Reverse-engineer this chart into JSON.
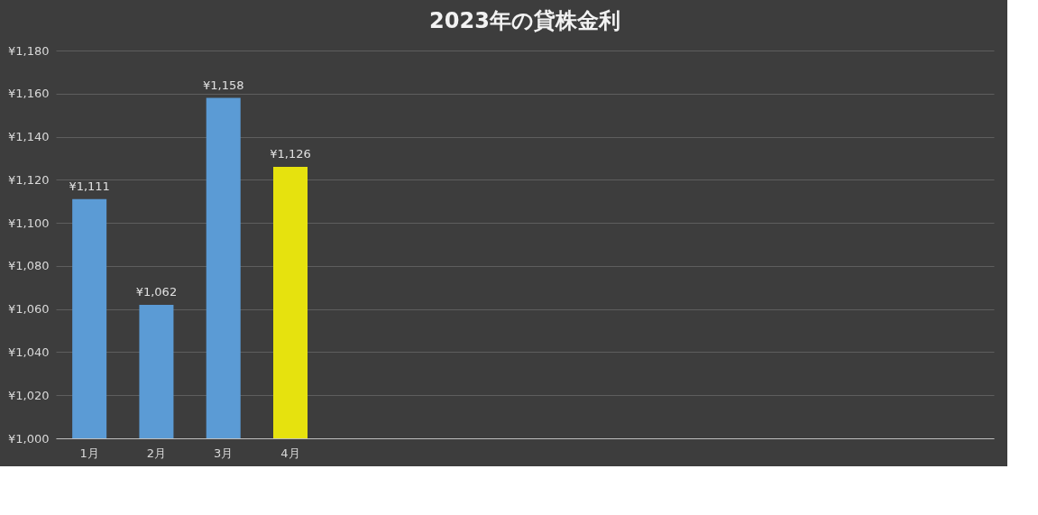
{
  "chart_data": {
    "type": "bar",
    "title": "2023年の貸株金利",
    "categories": [
      "1月",
      "2月",
      "3月",
      "4月",
      null,
      null,
      null,
      null,
      null,
      null,
      null,
      null,
      null,
      null
    ],
    "values": [
      1111,
      1062,
      1158,
      1126,
      null,
      null,
      null,
      null,
      null,
      null,
      null,
      null,
      null,
      null
    ],
    "colors": [
      "#5b9bd5",
      "#5b9bd5",
      "#5b9bd5",
      "#e6e20e",
      null,
      null,
      null,
      null,
      null,
      null,
      null,
      null,
      null,
      null
    ],
    "value_labels": [
      "¥1,111",
      "¥1,062",
      "¥1,158",
      "¥1,126",
      null,
      null,
      null,
      null,
      null,
      null,
      null,
      null,
      null,
      null
    ],
    "ylim": [
      1000,
      1180
    ],
    "yticks": [
      {
        "value": 1000,
        "label": "¥1,000"
      },
      {
        "value": 1020,
        "label": "¥1,020"
      },
      {
        "value": 1040,
        "label": "¥1,040"
      },
      {
        "value": 1060,
        "label": "¥1,060"
      },
      {
        "value": 1080,
        "label": "¥1,080"
      },
      {
        "value": 1100,
        "label": "¥1,100"
      },
      {
        "value": 1120,
        "label": "¥1,120"
      },
      {
        "value": 1140,
        "label": "¥1,140"
      },
      {
        "value": 1160,
        "label": "¥1,160"
      },
      {
        "value": 1180,
        "label": "¥1,180"
      }
    ],
    "grid": "y",
    "legend": false
  }
}
